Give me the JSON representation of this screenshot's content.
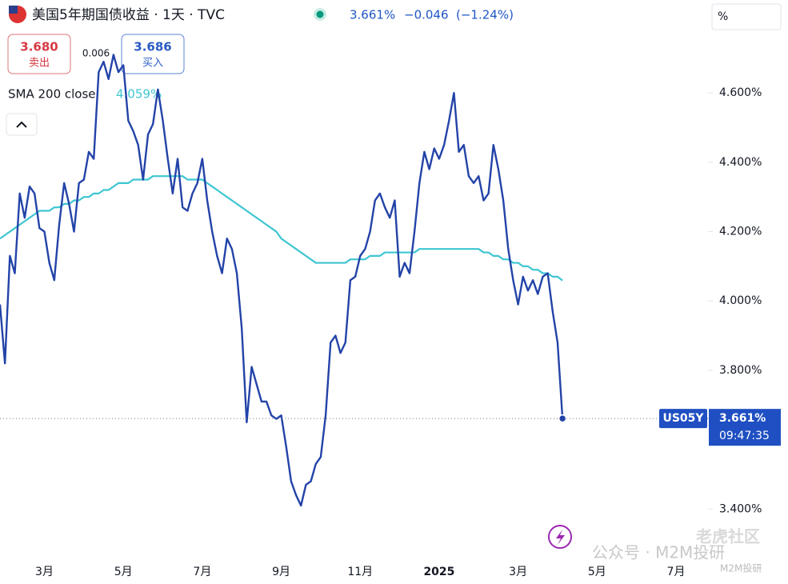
{
  "chart_data": {
    "type": "line",
    "title": "美国5年期国债收益 · 1天 · TVC",
    "last_label": "3.661%",
    "change": "−0.046",
    "change_pct": "(−1.24%)",
    "trade": {
      "sell_price": "3.680",
      "sell_label": "卖出",
      "spread": "0.006",
      "buy_price": "3.686",
      "buy_label": "买入"
    },
    "legend_value": "4.059%",
    "unit_button": "%",
    "price_time": "09:47:35",
    "watermarks": [
      "老虎社区",
      "公众号 · M2M投研",
      "M2M投研"
    ],
    "ylim": [
      3.253,
      4.868
    ],
    "yticks": [
      {
        "value": 3.4,
        "label": "3.400%"
      },
      {
        "value": 3.8,
        "label": "3.800%"
      },
      {
        "value": 4.0,
        "label": "4.000%"
      },
      {
        "value": 4.2,
        "label": "4.200%"
      },
      {
        "value": 4.4,
        "label": "4.400%"
      },
      {
        "value": 4.6,
        "label": "4.600%"
      }
    ],
    "grid": false,
    "categories": [
      null,
      null,
      null,
      null,
      null,
      null,
      null,
      null,
      null,
      "3月",
      null,
      null,
      null,
      null,
      null,
      null,
      null,
      null,
      null,
      null,
      null,
      null,
      null,
      null,
      null,
      "5月",
      null,
      null,
      null,
      null,
      null,
      null,
      null,
      null,
      null,
      null,
      null,
      null,
      null,
      null,
      null,
      "7月",
      null,
      null,
      null,
      null,
      null,
      null,
      null,
      null,
      null,
      null,
      null,
      null,
      null,
      null,
      null,
      "9月",
      null,
      null,
      null,
      null,
      null,
      null,
      null,
      null,
      null,
      null,
      null,
      null,
      null,
      null,
      null,
      "11月",
      null,
      null,
      null,
      null,
      null,
      null,
      null,
      null,
      null,
      null,
      null,
      null,
      null,
      null,
      null,
      "2025",
      null,
      null,
      null,
      null,
      null,
      null,
      null,
      null,
      null,
      null,
      null,
      null,
      null,
      null,
      null,
      "3月",
      null,
      null,
      null,
      null,
      null,
      null,
      null,
      null,
      null,
      null,
      null,
      null,
      null,
      null,
      null,
      "5月",
      null,
      null,
      null,
      null,
      null,
      null,
      null,
      null,
      null,
      null,
      null,
      null,
      null,
      null,
      null,
      "7月",
      null,
      null,
      null,
      null,
      null,
      null
    ],
    "series": [
      {
        "name": "US05Y",
        "color": "#2343a8",
        "values": [
          3.99,
          3.82,
          4.13,
          4.08,
          4.31,
          4.24,
          4.33,
          4.31,
          4.21,
          4.2,
          4.11,
          4.06,
          4.22,
          4.34,
          4.28,
          4.2,
          4.34,
          4.35,
          4.43,
          4.41,
          4.66,
          4.69,
          4.64,
          4.71,
          4.66,
          4.68,
          4.52,
          4.49,
          4.45,
          4.35,
          4.48,
          4.51,
          4.61,
          4.52,
          4.41,
          4.31,
          4.41,
          4.27,
          4.26,
          4.31,
          4.34,
          4.41,
          4.29,
          4.2,
          4.13,
          4.08,
          4.18,
          4.15,
          4.08,
          3.92,
          3.65,
          3.81,
          3.76,
          3.71,
          3.71,
          3.67,
          3.66,
          3.67,
          3.58,
          3.48,
          3.44,
          3.41,
          3.47,
          3.48,
          3.53,
          3.55,
          3.67,
          3.88,
          3.9,
          3.85,
          3.88,
          4.06,
          4.07,
          4.13,
          4.15,
          4.2,
          4.29,
          4.31,
          4.27,
          4.24,
          4.29,
          4.07,
          4.11,
          4.08,
          4.2,
          4.34,
          4.43,
          4.38,
          4.44,
          4.41,
          4.45,
          4.52,
          4.6,
          4.43,
          4.45,
          4.36,
          4.34,
          4.36,
          4.29,
          4.31,
          4.45,
          4.38,
          4.29,
          4.15,
          4.06,
          3.99,
          4.07,
          4.03,
          4.06,
          4.02,
          4.07,
          4.08,
          3.97,
          3.88,
          3.661,
          null,
          null,
          null,
          null,
          null,
          null,
          null,
          null,
          null,
          null,
          null,
          null,
          null,
          null,
          null,
          null,
          null,
          null,
          null,
          null,
          null,
          null,
          null,
          null,
          null,
          null,
          null,
          null,
          null
        ]
      },
      {
        "name": "SMA 200 close",
        "color": "#3ec6d2",
        "values": [
          4.18,
          4.19,
          4.2,
          4.21,
          4.22,
          4.23,
          4.24,
          4.25,
          4.26,
          4.26,
          4.26,
          4.27,
          4.27,
          4.28,
          4.28,
          4.29,
          4.29,
          4.3,
          4.3,
          4.31,
          4.31,
          4.32,
          4.32,
          4.33,
          4.34,
          4.34,
          4.34,
          4.35,
          4.35,
          4.35,
          4.35,
          4.36,
          4.36,
          4.36,
          4.36,
          4.36,
          4.36,
          4.36,
          4.35,
          4.35,
          4.35,
          4.35,
          4.34,
          4.33,
          4.32,
          4.31,
          4.3,
          4.29,
          4.28,
          4.27,
          4.26,
          4.25,
          4.24,
          4.23,
          4.22,
          4.21,
          4.2,
          4.18,
          4.17,
          4.16,
          4.15,
          4.14,
          4.13,
          4.12,
          4.11,
          4.11,
          4.11,
          4.11,
          4.11,
          4.11,
          4.11,
          4.12,
          4.12,
          4.12,
          4.12,
          4.13,
          4.13,
          4.13,
          4.14,
          4.14,
          4.14,
          4.14,
          4.14,
          4.14,
          4.14,
          4.15,
          4.15,
          4.15,
          4.15,
          4.15,
          4.15,
          4.15,
          4.15,
          4.15,
          4.15,
          4.15,
          4.15,
          4.15,
          4.14,
          4.14,
          4.13,
          4.13,
          4.12,
          4.12,
          4.11,
          4.11,
          4.1,
          4.1,
          4.09,
          4.09,
          4.08,
          4.08,
          4.07,
          4.07,
          4.059,
          null,
          null,
          null,
          null,
          null,
          null,
          null,
          null,
          null,
          null,
          null,
          null,
          null,
          null,
          null,
          null,
          null,
          null,
          null,
          null,
          null,
          null,
          null,
          null,
          null,
          null,
          null,
          null,
          null
        ]
      }
    ]
  }
}
